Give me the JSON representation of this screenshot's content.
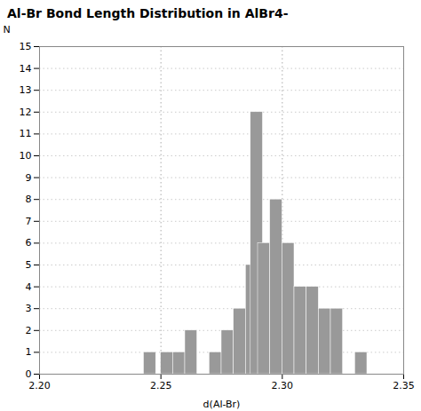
{
  "chart_data": {
    "type": "histogram",
    "title": "Al-Br Bond Length Distribution in AlBr4-",
    "xlabel": "d(Al-Br)",
    "ylabel": "N",
    "x": [
      2.243,
      2.25,
      2.255,
      2.26,
      2.265,
      2.27,
      2.275,
      2.28,
      2.285,
      2.287,
      2.29,
      2.295,
      2.3,
      2.305,
      2.31,
      2.315,
      2.32,
      2.33
    ],
    "bin_width": 0.005,
    "values": [
      1,
      1,
      1,
      2,
      0,
      1,
      2,
      3,
      5,
      12,
      6,
      8,
      6,
      4,
      4,
      3,
      3,
      1
    ],
    "color": "#999999",
    "xlim": [
      2.2,
      2.35
    ],
    "ylim": [
      0,
      15
    ],
    "xticks": [
      {
        "value": 2.2,
        "label": "2.20"
      },
      2.25,
      {
        "value": 2.3,
        "label": "2.30"
      },
      2.35
    ],
    "yticks": [
      0,
      1,
      2,
      3,
      4,
      5,
      6,
      7,
      8,
      9,
      10,
      11,
      12,
      13,
      14,
      15
    ],
    "grid": "y",
    "vlines": {
      "values": [
        2.25,
        2.3
      ],
      "color": "#aaaaaa",
      "line_style": "dotted"
    }
  }
}
